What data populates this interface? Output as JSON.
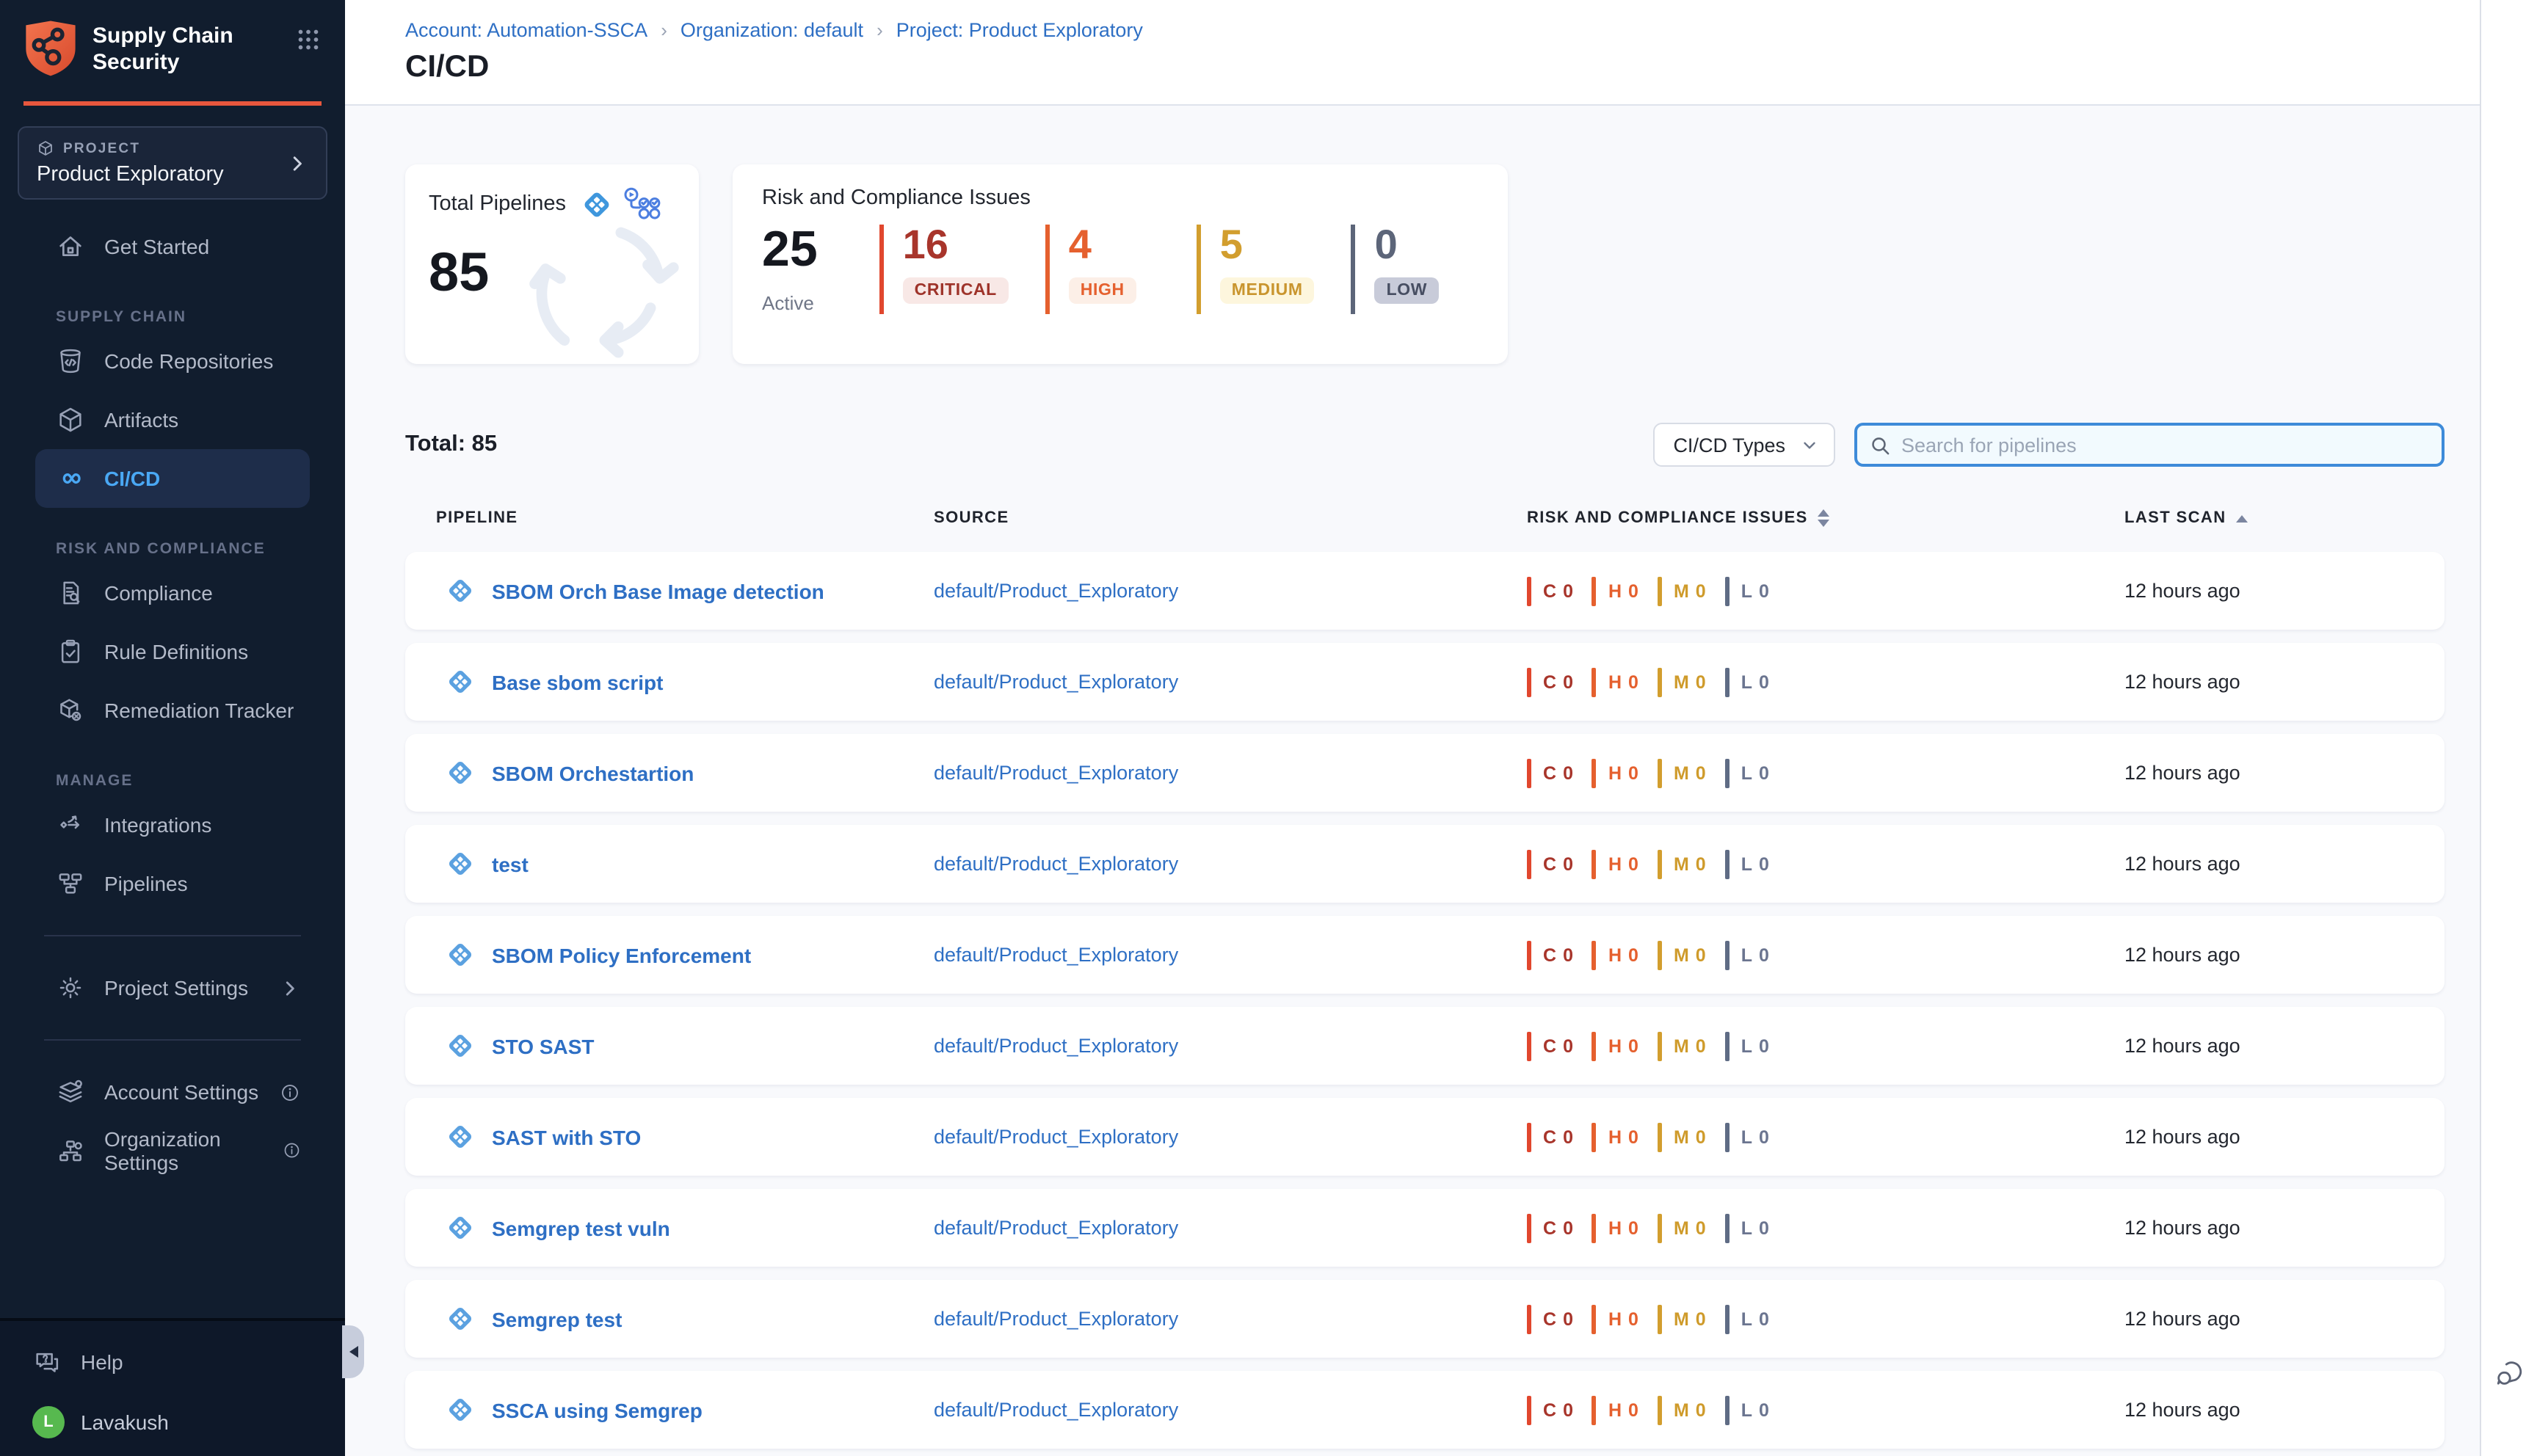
{
  "brand": {
    "line1": "Supply Chain",
    "line2": "Security",
    "accent_color": "#e8573d"
  },
  "sidebar": {
    "project_card": {
      "eyebrow": "PROJECT",
      "name": "Product Exploratory"
    },
    "sections": [
      {
        "label": "",
        "items": [
          {
            "icon": "home",
            "label": "Get Started",
            "active": false
          }
        ]
      },
      {
        "label": "SUPPLY CHAIN",
        "items": [
          {
            "icon": "code-repositories",
            "label": "Code Repositories",
            "active": false
          },
          {
            "icon": "artifacts-cube",
            "label": "Artifacts",
            "active": false
          },
          {
            "icon": "cicd-infinity",
            "label": "CI/CD",
            "active": true
          }
        ]
      },
      {
        "label": "RISK AND COMPLIANCE",
        "items": [
          {
            "icon": "compliance-doc",
            "label": "Compliance",
            "active": false
          },
          {
            "icon": "rule-clipboard",
            "label": "Rule Definitions",
            "active": false
          },
          {
            "icon": "remediation-box",
            "label": "Remediation Tracker",
            "active": false
          }
        ]
      },
      {
        "label": "MANAGE",
        "items": [
          {
            "icon": "integrations",
            "label": "Integrations",
            "active": false
          },
          {
            "icon": "pipelines-flow",
            "label": "Pipelines",
            "active": false
          }
        ]
      }
    ],
    "footer_items": [
      {
        "icon": "gear",
        "label": "Project Settings",
        "trailing": "chevron-right"
      },
      {
        "icon": "account-layers",
        "label": "Account Settings",
        "trailing": "info"
      },
      {
        "icon": "org-nodes",
        "label": "Organization Settings",
        "trailing": "info"
      }
    ],
    "help_label": "Help",
    "user": {
      "name": "Lavakush",
      "initial": "L",
      "avatar_color": "#57b94f"
    }
  },
  "header": {
    "breadcrumb": [
      "Account: Automation-SSCA",
      "Organization: default",
      "Project: Product Exploratory"
    ],
    "title": "CI/CD"
  },
  "summary_cards": {
    "total_pipelines": {
      "title": "Total Pipelines",
      "value": "85"
    },
    "risk": {
      "title": "Risk and Compliance Issues",
      "active_value": "25",
      "active_label": "Active",
      "severities": [
        {
          "label": "CRITICAL",
          "count": "16",
          "number_color": "#a8352b",
          "bar_color": "#e1472e",
          "badge_bg": "#f8e8e6",
          "badge_text": "#9e332a"
        },
        {
          "label": "HIGH",
          "count": "4",
          "number_color": "#e5602e",
          "bar_color": "#e5602e",
          "badge_bg": "#fcefe7",
          "badge_text": "#e5602e"
        },
        {
          "label": "MEDIUM",
          "count": "5",
          "number_color": "#d29e2e",
          "bar_color": "#d29e2e",
          "badge_bg": "#fdf6dd",
          "badge_text": "#c9952e"
        },
        {
          "label": "LOW",
          "count": "0",
          "number_color": "#5c6579",
          "bar_color": "#5c6579",
          "badge_bg": "#c8cbd9",
          "badge_text": "#474e62"
        }
      ]
    }
  },
  "toolbar": {
    "total_label": "Total: 85",
    "type_filter_label": "CI/CD Types",
    "search_placeholder": "Search for pipelines"
  },
  "table": {
    "columns": [
      "PIPELINE",
      "SOURCE",
      "RISK AND COMPLIANCE ISSUES",
      "LAST SCAN"
    ],
    "row_severities": [
      {
        "letter": "C",
        "count": "0",
        "text_color": "#a8352b",
        "bar_color": "#e1472e"
      },
      {
        "letter": "H",
        "count": "0",
        "text_color": "#e5602e",
        "bar_color": "#e5602e"
      },
      {
        "letter": "M",
        "count": "0",
        "text_color": "#cf9b2b",
        "bar_color": "#d29e2e"
      },
      {
        "letter": "L",
        "count": "0",
        "text_color": "#6b7590",
        "bar_color": "#5f6c85"
      }
    ],
    "rows": [
      {
        "name": "SBOM Orch Base Image detection",
        "source": "default/Product_Exploratory",
        "last_scan": "12 hours ago"
      },
      {
        "name": "Base sbom script",
        "source": "default/Product_Exploratory",
        "last_scan": "12 hours ago"
      },
      {
        "name": "SBOM Orchestartion",
        "source": "default/Product_Exploratory",
        "last_scan": "12 hours ago"
      },
      {
        "name": "test",
        "source": "default/Product_Exploratory",
        "last_scan": "12 hours ago"
      },
      {
        "name": "SBOM Policy Enforcement",
        "source": "default/Product_Exploratory",
        "last_scan": "12 hours ago"
      },
      {
        "name": "STO SAST",
        "source": "default/Product_Exploratory",
        "last_scan": "12 hours ago"
      },
      {
        "name": "SAST with STO",
        "source": "default/Product_Exploratory",
        "last_scan": "12 hours ago"
      },
      {
        "name": "Semgrep test vuln",
        "source": "default/Product_Exploratory",
        "last_scan": "12 hours ago"
      },
      {
        "name": "Semgrep test",
        "source": "default/Product_Exploratory",
        "last_scan": "12 hours ago"
      },
      {
        "name": "SSCA using Semgrep",
        "source": "default/Product_Exploratory",
        "last_scan": "12 hours ago"
      }
    ]
  }
}
